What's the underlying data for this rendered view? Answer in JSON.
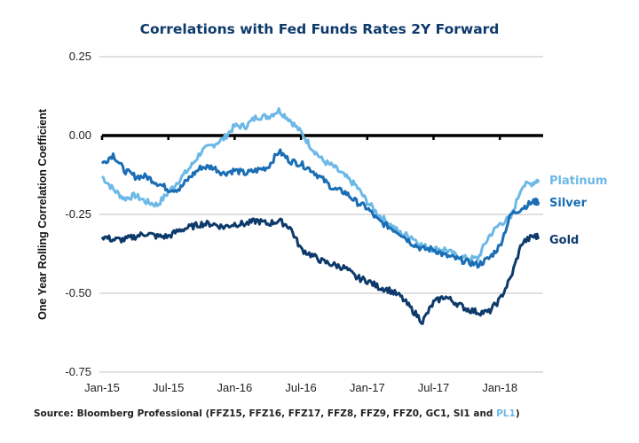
{
  "chart_data": {
    "type": "line",
    "title": "Correlations with Fed Funds Rates 2Y Forward",
    "xlabel": "",
    "ylabel": "One Year Rolling Correlation Coefficient",
    "ylim": [
      -0.75,
      0.25
    ],
    "yticks": [
      0.25,
      0.0,
      -0.25,
      -0.5,
      -0.75
    ],
    "ytick_labels": [
      "0.25",
      "0.00",
      "-0.25",
      "-0.50",
      "-0.75"
    ],
    "xlim_months_from_jan15": [
      0,
      39.5
    ],
    "xticks_months": [
      0,
      6,
      12,
      18,
      24,
      30,
      36
    ],
    "xtick_labels": [
      "Jan-15",
      "Jul-15",
      "Jan-16",
      "Jul-16",
      "Jan-17",
      "Jul-17",
      "Jan-18"
    ],
    "grid": true,
    "zero_line": true,
    "x_months": [
      0,
      1,
      2,
      3,
      4,
      5,
      6,
      7,
      8,
      9,
      10,
      11,
      12,
      13,
      14,
      15,
      16,
      17,
      18,
      19,
      20,
      21,
      22,
      23,
      24,
      25,
      26,
      27,
      28,
      29,
      30,
      31,
      32,
      33,
      34,
      35,
      36,
      37,
      38,
      39,
      39.5
    ],
    "series": [
      {
        "name": "Platinum",
        "color": "#6cb8e6",
        "values": [
          -0.13,
          -0.17,
          -0.2,
          -0.19,
          -0.21,
          -0.22,
          -0.18,
          -0.14,
          -0.1,
          -0.05,
          -0.03,
          -0.01,
          0.03,
          0.03,
          0.06,
          0.06,
          0.08,
          0.05,
          0.01,
          -0.04,
          -0.08,
          -0.1,
          -0.13,
          -0.16,
          -0.21,
          -0.25,
          -0.28,
          -0.31,
          -0.32,
          -0.35,
          -0.36,
          -0.36,
          -0.38,
          -0.39,
          -0.39,
          -0.32,
          -0.28,
          -0.26,
          -0.16,
          -0.15,
          -0.14
        ]
      },
      {
        "name": "Silver",
        "color": "#1a6eb5",
        "values": [
          -0.09,
          -0.06,
          -0.11,
          -0.13,
          -0.13,
          -0.15,
          -0.17,
          -0.17,
          -0.13,
          -0.1,
          -0.1,
          -0.12,
          -0.11,
          -0.12,
          -0.11,
          -0.1,
          -0.05,
          -0.08,
          -0.09,
          -0.11,
          -0.14,
          -0.17,
          -0.18,
          -0.21,
          -0.23,
          -0.27,
          -0.29,
          -0.31,
          -0.34,
          -0.36,
          -0.36,
          -0.38,
          -0.39,
          -0.4,
          -0.41,
          -0.39,
          -0.35,
          -0.25,
          -0.23,
          -0.21,
          -0.21
        ]
      },
      {
        "name": "Gold",
        "color": "#0d3a6b",
        "values": [
          -0.32,
          -0.33,
          -0.33,
          -0.32,
          -0.31,
          -0.32,
          -0.32,
          -0.3,
          -0.29,
          -0.28,
          -0.28,
          -0.29,
          -0.28,
          -0.28,
          -0.27,
          -0.28,
          -0.27,
          -0.29,
          -0.36,
          -0.38,
          -0.4,
          -0.41,
          -0.42,
          -0.45,
          -0.46,
          -0.48,
          -0.49,
          -0.51,
          -0.55,
          -0.59,
          -0.53,
          -0.51,
          -0.53,
          -0.55,
          -0.56,
          -0.56,
          -0.52,
          -0.45,
          -0.34,
          -0.32,
          -0.32
        ]
      }
    ],
    "legend": "right-end-labels"
  },
  "source": {
    "prefix": "Source: Bloomberg Professional (FFZ15, FFZ16, FFZ17, FFZ8, FFZ9, FFZ0, GC1, SI1 and ",
    "highlight": "PL1",
    "suffix": ")",
    "highlight_color": "#6cb8e6"
  }
}
